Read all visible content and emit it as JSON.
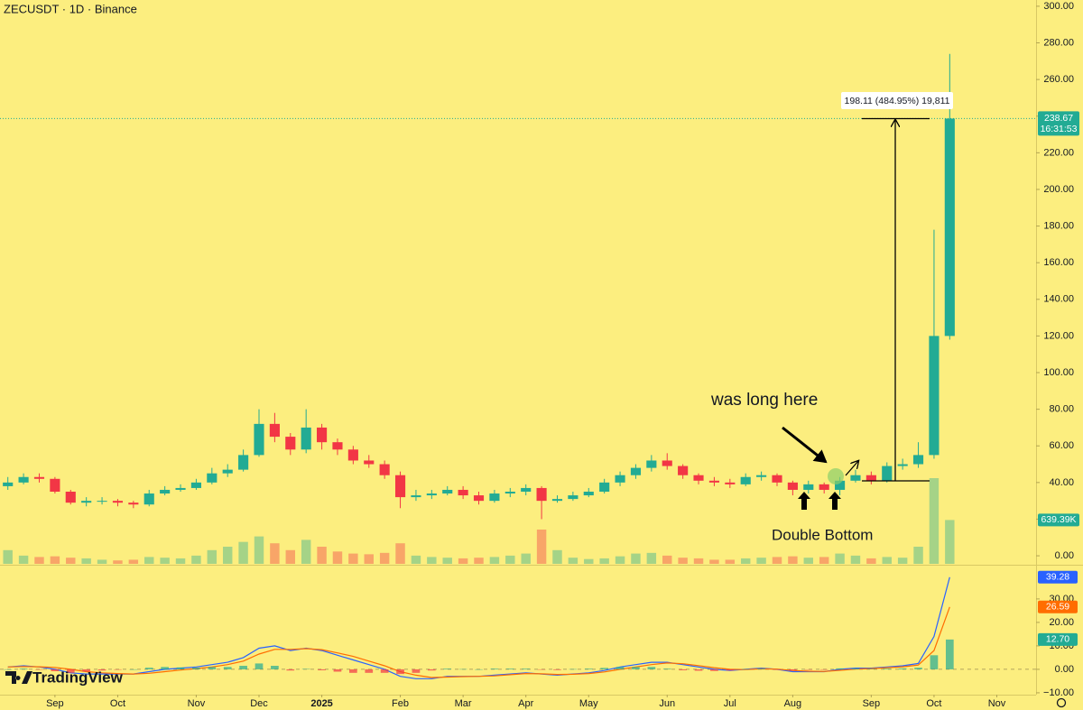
{
  "chart_data": [
    {
      "type": "candlestick",
      "title": "ZECUSDT · 1D · Binance",
      "brand": "TradingView",
      "countdown": "16:31:53",
      "categories": [
        null,
        null,
        null,
        "Sep",
        null,
        null,
        null,
        "Oct",
        null,
        null,
        null,
        null,
        "Nov",
        null,
        null,
        null,
        "Dec",
        null,
        null,
        null,
        "2025",
        null,
        null,
        null,
        null,
        "Feb",
        null,
        null,
        null,
        "Mar",
        null,
        null,
        null,
        "Apr",
        null,
        null,
        null,
        "May",
        null,
        null,
        null,
        null,
        "Jun",
        null,
        null,
        null,
        "Jul",
        null,
        null,
        null,
        "Aug",
        null,
        null,
        null,
        null,
        "Sep",
        null,
        null,
        null,
        "Oct",
        null,
        null,
        null,
        "Nov",
        null,
        null
      ],
      "open": [
        38,
        40,
        43,
        42,
        35,
        29,
        30,
        30,
        29,
        28,
        34,
        36,
        37,
        40,
        45,
        47,
        55,
        72,
        65,
        58,
        70,
        62,
        58,
        52,
        50,
        44,
        32,
        33,
        34,
        36,
        33,
        30,
        34,
        35,
        37,
        30,
        31,
        33,
        35,
        40,
        44,
        48,
        52,
        49,
        44,
        41,
        40,
        39,
        43,
        44,
        40,
        36,
        39,
        36,
        41,
        44,
        41,
        49,
        50,
        55,
        120,
        null,
        null,
        null,
        null,
        null
      ],
      "high": [
        43,
        45,
        45,
        43,
        36,
        32,
        32,
        31,
        30,
        36,
        38,
        39,
        42,
        48,
        50,
        58,
        80,
        78,
        67,
        80,
        72,
        64,
        60,
        55,
        52,
        46,
        36,
        36,
        38,
        38,
        35,
        36,
        37,
        39,
        38,
        33,
        35,
        37,
        42,
        46,
        50,
        55,
        56,
        50,
        45,
        43,
        42,
        45,
        46,
        45,
        41,
        41,
        40,
        43,
        47,
        46,
        51,
        53,
        62,
        178,
        274,
        null,
        null,
        null,
        null,
        null
      ],
      "low": [
        36,
        39,
        40,
        34,
        28,
        27,
        28,
        27,
        26,
        27,
        33,
        35,
        36,
        39,
        43,
        46,
        54,
        62,
        55,
        56,
        58,
        55,
        50,
        48,
        42,
        26,
        30,
        31,
        33,
        31,
        28,
        29,
        32,
        33,
        20,
        29,
        30,
        32,
        34,
        38,
        42,
        46,
        47,
        42,
        39,
        38,
        37,
        38,
        41,
        38,
        33,
        34,
        34,
        33,
        40,
        39,
        40,
        47,
        48,
        53,
        118,
        null,
        null,
        null,
        null,
        null
      ],
      "close": [
        40,
        43,
        42,
        35,
        29,
        30,
        30,
        29,
        28,
        34,
        36,
        37,
        40,
        45,
        47,
        55,
        72,
        65,
        58,
        70,
        62,
        58,
        52,
        50,
        44,
        32,
        33,
        34,
        36,
        33,
        30,
        34,
        35,
        37,
        30,
        31,
        33,
        35,
        40,
        44,
        48,
        52,
        49,
        44,
        41,
        40,
        39,
        43,
        44,
        40,
        36,
        39,
        36,
        41,
        44,
        41,
        49,
        50,
        55,
        120,
        238.67,
        null,
        null,
        null,
        null,
        null
      ],
      "up_color": "#22ab94",
      "down_color": "#f23645",
      "volume": {
        "values": [
          200000,
          120000,
          100000,
          110000,
          90000,
          80000,
          60000,
          50000,
          60000,
          100000,
          90000,
          80000,
          120000,
          200000,
          250000,
          320000,
          400000,
          300000,
          200000,
          350000,
          250000,
          180000,
          150000,
          140000,
          160000,
          300000,
          120000,
          100000,
          90000,
          80000,
          90000,
          100000,
          120000,
          150000,
          500000,
          200000,
          90000,
          70000,
          80000,
          110000,
          150000,
          160000,
          120000,
          90000,
          80000,
          60000,
          60000,
          80000,
          90000,
          100000,
          110000,
          90000,
          100000,
          150000,
          120000,
          80000,
          100000,
          90000,
          250000,
          1250000,
          639390,
          null,
          null,
          null,
          null,
          null
        ],
        "value_labels": [
          null,
          null,
          null,
          null,
          null,
          null,
          null,
          null,
          null,
          null,
          null,
          null,
          null,
          null,
          null,
          null,
          null,
          null,
          null,
          null,
          null,
          null,
          null,
          null,
          null,
          null,
          null,
          null,
          null,
          null,
          null,
          null,
          null,
          null,
          null,
          null,
          null,
          null,
          null,
          null,
          null,
          null,
          null,
          null,
          null,
          null,
          null,
          null,
          null,
          null,
          null,
          null,
          null,
          null,
          null,
          null,
          null,
          null,
          null,
          null,
          "639.39K",
          null,
          null,
          null,
          null,
          null
        ],
        "color": "#22ab94"
      },
      "ylim": [
        -4.4,
        303.4
      ],
      "yticks": [
        {
          "value": 0,
          "label": "0.00"
        },
        {
          "value": 20,
          "label": "20.00"
        },
        {
          "value": 40,
          "label": "40.00"
        },
        {
          "value": 60,
          "label": "60.00"
        },
        {
          "value": 80,
          "label": "80.00"
        },
        {
          "value": 100,
          "label": "100.00"
        },
        {
          "value": 120,
          "label": "120.00"
        },
        {
          "value": 140,
          "label": "140.00"
        },
        {
          "value": 160,
          "label": "160.00"
        },
        {
          "value": 180,
          "label": "180.00"
        },
        {
          "value": 200,
          "label": "200.00"
        },
        {
          "value": 220,
          "label": "220.00"
        },
        {
          "value": 240,
          "label": "240.00"
        },
        {
          "value": 260,
          "label": "260.00"
        },
        {
          "value": 280,
          "label": "280.00"
        },
        {
          "value": 300,
          "label": "300.00"
        }
      ],
      "annotations": [
        "was long here",
        "Double Bottom",
        "198.11 (484.95%) 19,811"
      ]
    },
    {
      "type": "macd",
      "series": [
        {
          "color": "#2962ff",
          "values": [
            1,
            1.5,
            1,
            0,
            -1.5,
            -2,
            -2,
            -2,
            -2,
            -1,
            0,
            0.5,
            1,
            2,
            3,
            5,
            9,
            10,
            8,
            9,
            8,
            6,
            4,
            2,
            0,
            -3,
            -4,
            -4,
            -3,
            -3,
            -3,
            -2.5,
            -2,
            -1.5,
            -2,
            -2.5,
            -2,
            -1.5,
            -0.5,
            1,
            2,
            3,
            3,
            2,
            1,
            0,
            -0.5,
            0,
            0.5,
            0,
            -1,
            -1,
            -1,
            0,
            0.5,
            0.5,
            1,
            1.5,
            2.5,
            14,
            39.28,
            null,
            null,
            null,
            null,
            null
          ]
        },
        {
          "color": "#ff6d00",
          "values": [
            1,
            1.2,
            1.1,
            0.8,
            0,
            -1,
            -1.5,
            -1.8,
            -2,
            -1.7,
            -1,
            -0.3,
            0.3,
            1,
            2,
            3.5,
            6.5,
            8.5,
            8.5,
            8.8,
            8.4,
            7,
            5.5,
            3.5,
            1.5,
            -1,
            -2.5,
            -3.5,
            -3.3,
            -3.1,
            -3,
            -2.8,
            -2.3,
            -1.8,
            -1.9,
            -2.2,
            -2.1,
            -1.8,
            -1.1,
            0,
            1,
            2,
            2.7,
            2.4,
            1.6,
            0.7,
            0,
            -0.1,
            0.2,
            0.1,
            -0.5,
            -0.8,
            -0.9,
            -0.4,
            0.1,
            0.3,
            0.7,
            1.1,
            1.8,
            8,
            26.59,
            null,
            null,
            null,
            null,
            null
          ]
        },
        {
          "type": "histogram",
          "color": "#22ab94",
          "down_color": "#f23645",
          "values": [
            0,
            0.3,
            -0.1,
            -0.8,
            -1.5,
            -1,
            -0.5,
            -0.2,
            0,
            0.7,
            1,
            0.8,
            0.7,
            1,
            1,
            1.5,
            2.5,
            1.5,
            -0.5,
            0.2,
            -0.4,
            -1,
            -1.5,
            -1.5,
            -1.5,
            -2,
            -1.5,
            -0.5,
            0.3,
            0.1,
            0,
            0.3,
            0.3,
            0.3,
            -0.1,
            -0.3,
            0.1,
            0.3,
            0.6,
            1,
            1,
            1,
            0.3,
            -0.4,
            -0.6,
            -0.7,
            -0.5,
            0.1,
            0.3,
            -0.1,
            -0.5,
            -0.2,
            -0.1,
            0.4,
            0.4,
            0.2,
            0.3,
            0.4,
            0.7,
            6,
            12.7,
            null,
            null,
            null,
            null,
            null
          ],
          "value_labels": [
            null,
            null,
            null,
            null,
            null,
            null,
            null,
            null,
            null,
            null,
            null,
            null,
            null,
            null,
            null,
            null,
            null,
            null,
            null,
            null,
            null,
            null,
            null,
            null,
            null,
            null,
            null,
            null,
            null,
            null,
            null,
            null,
            null,
            null,
            null,
            null,
            null,
            null,
            null,
            null,
            null,
            null,
            null,
            null,
            null,
            null,
            null,
            null,
            null,
            null,
            null,
            null,
            null,
            null,
            null,
            null,
            null,
            null,
            null,
            null,
            "12.70",
            null,
            null,
            null,
            null,
            null
          ]
        }
      ],
      "ylim": [
        -10.8,
        43.8
      ],
      "yticks": [
        {
          "value": -10,
          "label": "−10.00"
        },
        {
          "value": 0,
          "label": "0.00"
        },
        {
          "value": 10,
          "label": "10.00"
        },
        {
          "value": 20,
          "label": "20.00"
        },
        {
          "value": 30,
          "label": "30.00"
        }
      ]
    }
  ]
}
